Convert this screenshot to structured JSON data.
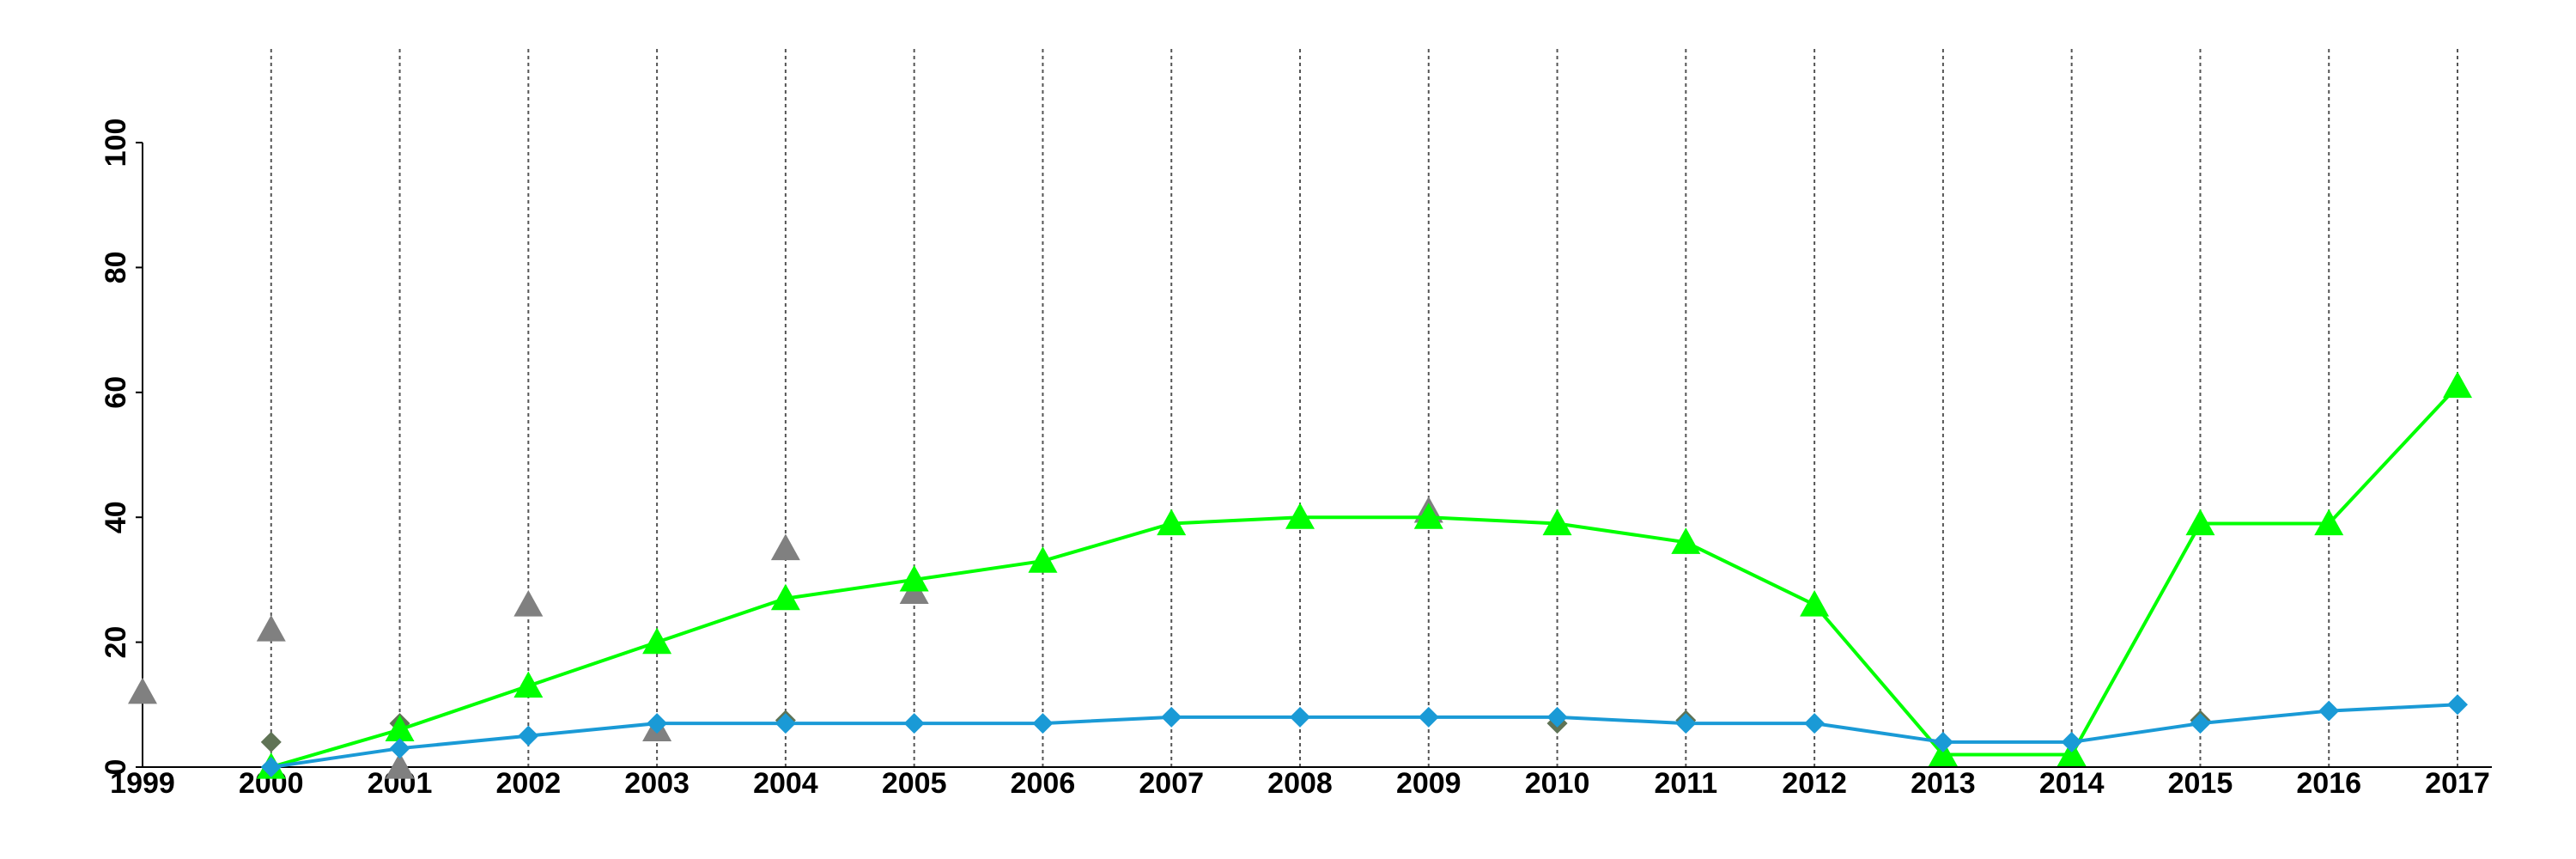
{
  "chart_data": {
    "type": "line",
    "x": [
      1999,
      2000,
      2001,
      2002,
      2003,
      2004,
      2005,
      2006,
      2007,
      2008,
      2009,
      2010,
      2011,
      2012,
      2013,
      2014,
      2015,
      2016,
      2017
    ],
    "xlim": [
      1999,
      2017
    ],
    "xticks": [
      1999,
      2000,
      2001,
      2002,
      2003,
      2004,
      2005,
      2006,
      2007,
      2008,
      2009,
      2010,
      2011,
      2012,
      2013,
      2014,
      2015,
      2016,
      2017
    ],
    "ylim": [
      0,
      100
    ],
    "yticks": [
      0,
      20,
      40,
      60,
      80,
      100
    ],
    "grid": "x",
    "series": [
      {
        "color": "#808080",
        "marker": "triangle",
        "line": false,
        "values": [
          12,
          22,
          0,
          26,
          6,
          35,
          28,
          null,
          null,
          null,
          41,
          null,
          null,
          null,
          null,
          null,
          null,
          null,
          null
        ]
      },
      {
        "color": "#5f7355",
        "marker": "diamond",
        "line": false,
        "values": [
          null,
          4,
          7,
          null,
          null,
          7.5,
          null,
          null,
          null,
          null,
          null,
          7,
          7.5,
          null,
          null,
          null,
          7.5,
          null,
          null
        ]
      },
      {
        "color": "#00ff00",
        "marker": "triangle",
        "line": true,
        "values": [
          null,
          0,
          6,
          13,
          20,
          27,
          30,
          33,
          39,
          40,
          40,
          39,
          36,
          26,
          2,
          2,
          39,
          39,
          61
        ]
      },
      {
        "color": "#1a9ad6",
        "marker": "diamond",
        "line": true,
        "values": [
          null,
          0,
          3,
          5,
          7,
          7,
          7,
          7,
          8,
          8,
          8,
          8,
          7,
          7,
          4,
          4,
          7,
          9,
          10
        ]
      }
    ]
  }
}
